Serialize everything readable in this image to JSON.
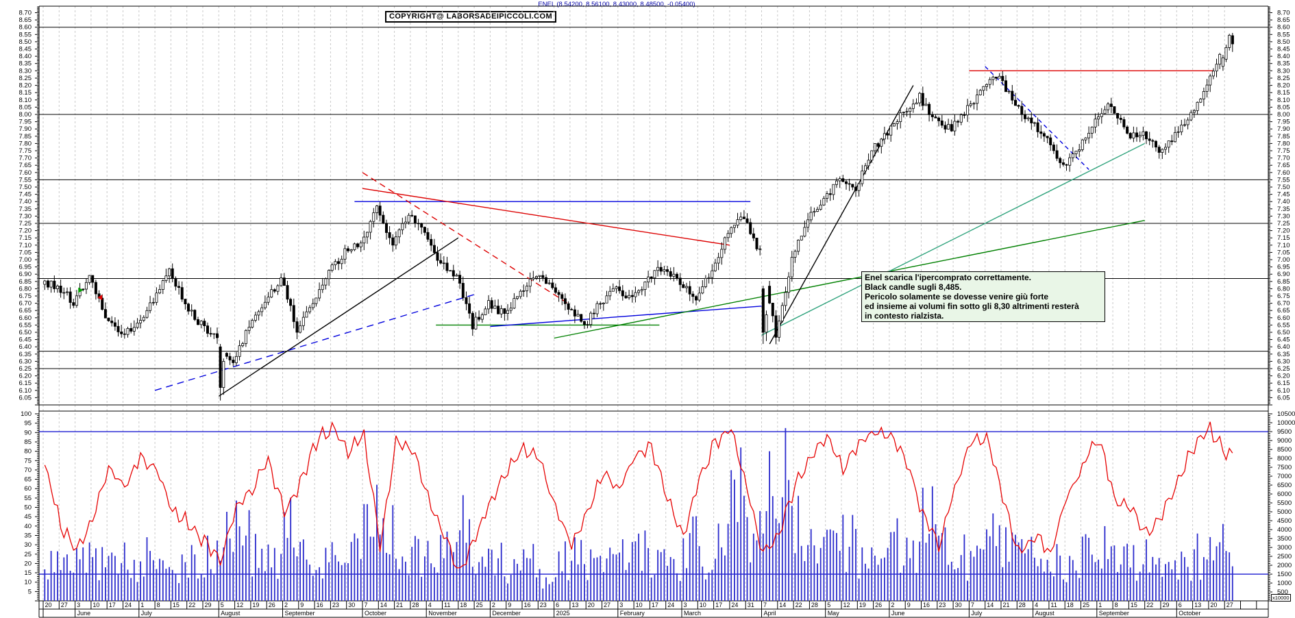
{
  "window": {
    "title": "ENEL (8.54200, 8.56100, 8.43000, 8.48500, -0.05400)",
    "copyright": "COPYRIGHT@ LABORSADEIPICCOLI.COM",
    "unit_label": "x10000"
  },
  "annotation": {
    "bg_color": "#e9f6e7",
    "lines": [
      "Enel scarica l'ipercomprato correttamente.",
      "Black candle sugli 8,485.",
      "Pericolo solamente se dovesse venire giù forte",
      "ed insieme ai volumi fin sotto gli 8,30 altrimenti resterà",
      "in contesto rialzista."
    ]
  },
  "axes": {
    "price": {
      "min": 6.0,
      "max": 8.745,
      "label_start": 6.05,
      "label_end": 8.7,
      "label_step": 0.05,
      "fine_step": 0.01
    },
    "oscillator_left": {
      "min": 0,
      "max": 100,
      "label_start": 5,
      "label_end": 100,
      "label_step": 5
    },
    "volume_right": {
      "min": 0,
      "max": 10500,
      "label_start": 500,
      "label_end": 10500,
      "label_step": 500,
      "unit": "x10000"
    }
  },
  "x_axis": {
    "week_day_labels": [
      "20",
      "27",
      "3",
      "10",
      "17",
      "24",
      "1",
      "8",
      "15",
      "22",
      "29",
      "5",
      "12",
      "19",
      "26",
      "2",
      "9",
      "16",
      "23",
      "30",
      "7",
      "14",
      "21",
      "28",
      "4",
      "11",
      "18",
      "25",
      "2",
      "9",
      "16",
      "23",
      "6",
      "13",
      "20",
      "27",
      "3",
      "10",
      "17",
      "24",
      "3",
      "10",
      "17",
      "24",
      "31",
      "7",
      "14",
      "22",
      "28",
      "5",
      "12",
      "19",
      "26",
      "2",
      "9",
      "16",
      "23",
      "30",
      "7",
      "14",
      "21",
      "28",
      "4",
      "11",
      "18",
      "25",
      "1",
      "8",
      "15",
      "22",
      "29",
      "6",
      "13",
      "20",
      "27"
    ],
    "months": [
      {
        "label": "",
        "weeks": 2
      },
      {
        "label": "June",
        "weeks": 4
      },
      {
        "label": "July",
        "weeks": 5
      },
      {
        "label": "August",
        "weeks": 4
      },
      {
        "label": "September",
        "weeks": 5
      },
      {
        "label": "October",
        "weeks": 4
      },
      {
        "label": "November",
        "weeks": 4
      },
      {
        "label": "December",
        "weeks": 4
      },
      {
        "label": "2025",
        "weeks": 4
      },
      {
        "label": "February",
        "weeks": 4
      },
      {
        "label": "March",
        "weeks": 5
      },
      {
        "label": "April",
        "weeks": 4
      },
      {
        "label": "May",
        "weeks": 4
      },
      {
        "label": "June",
        "weeks": 5
      },
      {
        "label": "July",
        "weeks": 4
      },
      {
        "label": "August",
        "weeks": 4
      },
      {
        "label": "September",
        "weeks": 5
      },
      {
        "label": "October",
        "weeks": 4
      }
    ]
  },
  "chart_data": {
    "type": "candlestick",
    "instrument": "ENEL",
    "title": "ENEL (8.54200, 8.56100, 8.43000, 8.48500, -0.05400)",
    "last_ohlc": {
      "open": 8.542,
      "high": 8.561,
      "low": 8.43,
      "close": 8.485,
      "change": -0.054
    },
    "price_ylim": [
      6.0,
      8.745
    ],
    "grid": "weekly-vertical-dashed",
    "weekly_close": [
      6.82,
      6.71,
      6.88,
      6.6,
      6.48,
      6.55,
      6.72,
      6.92,
      6.7,
      6.55,
      6.45,
      6.28,
      6.55,
      6.7,
      6.88,
      6.52,
      6.68,
      6.92,
      7.05,
      7.12,
      7.35,
      7.12,
      7.3,
      7.18,
      6.98,
      6.88,
      6.55,
      6.7,
      6.62,
      6.78,
      6.88,
      6.82,
      6.68,
      6.55,
      6.7,
      6.8,
      6.72,
      6.88,
      6.95,
      6.85,
      6.72,
      6.95,
      7.18,
      7.3,
      7.05,
      6.48,
      7.0,
      7.28,
      7.42,
      7.55,
      7.5,
      7.75,
      7.88,
      8.02,
      8.12,
      7.95,
      7.9,
      8.05,
      8.18,
      8.27,
      8.05,
      7.95,
      7.82,
      7.65,
      7.78,
      7.95,
      8.07,
      7.85,
      7.88,
      7.75,
      7.85,
      8.0,
      8.22,
      8.45,
      8.49
    ],
    "low_spikes": [
      {
        "week": 12,
        "low": 6.03
      },
      {
        "week": 46,
        "low": 6.42
      }
    ],
    "support_resistance_levels": [
      8.6,
      8.0,
      7.55,
      7.25,
      6.87,
      6.37,
      6.25
    ],
    "trendlines": [
      {
        "name": "resistance-8.30",
        "color": "#dd0000",
        "dash": "none",
        "from": [
          59.0,
          8.3
        ],
        "to": [
          74.3,
          8.3
        ]
      },
      {
        "name": "resistance-7.40",
        "color": "#0000dd",
        "dash": "none",
        "from": [
          20.5,
          7.4
        ],
        "to": [
          45.3,
          7.4
        ]
      },
      {
        "name": "support-6.55",
        "color": "#008000",
        "dash": "none",
        "from": [
          25.6,
          6.55
        ],
        "to": [
          39.6,
          6.55
        ]
      },
      {
        "name": "uptrend-black-2024",
        "color": "#000000",
        "dash": "none",
        "from": [
          12.0,
          6.06
        ],
        "to": [
          27.0,
          7.15
        ]
      },
      {
        "name": "uptrend-blue-dashed",
        "color": "#0000dd",
        "dash": "10 7",
        "from": [
          8.0,
          6.1
        ],
        "to": [
          28.0,
          6.76
        ]
      },
      {
        "name": "downtrend-red-solid",
        "color": "#dd0000",
        "dash": "none",
        "from": [
          21.0,
          7.49
        ],
        "to": [
          44.0,
          7.1
        ]
      },
      {
        "name": "downtrend-red-dashed",
        "color": "#dd0000",
        "dash": "9 6",
        "from": [
          21.0,
          7.6
        ],
        "to": [
          34.0,
          6.69
        ]
      },
      {
        "name": "uptrend-blue-flat",
        "color": "#0000dd",
        "dash": "none",
        "from": [
          29.0,
          6.54
        ],
        "to": [
          46.0,
          6.68
        ]
      },
      {
        "name": "uptrend-green-long",
        "color": "#008000",
        "dash": "none",
        "from": [
          33.0,
          6.46
        ],
        "to": [
          70.0,
          7.27
        ]
      },
      {
        "name": "uptrend-green-steep",
        "color": "#2fa37c",
        "dash": "none",
        "from": [
          46.0,
          6.48
        ],
        "to": [
          70.0,
          7.8
        ]
      },
      {
        "name": "uptrend-black-steep",
        "color": "#000000",
        "dash": "none",
        "from": [
          46.5,
          6.42
        ],
        "to": [
          55.5,
          8.2
        ]
      },
      {
        "name": "downtrend-blue-dashed-2025",
        "color": "#0000dd",
        "dash": "6 5",
        "from": [
          60.0,
          8.33
        ],
        "to": [
          66.5,
          7.62
        ]
      }
    ],
    "markers": [
      {
        "name": "green-arrow-right",
        "color": "#00a000",
        "week": 3.2,
        "price": 6.79,
        "dir": "right"
      },
      {
        "name": "red-arrow-left",
        "color": "#dd0000",
        "week": 4.7,
        "price": 6.74,
        "dir": "left"
      }
    ],
    "oscillator": {
      "name": "fast-oscillator",
      "color": "#e60000",
      "weekly_values": [
        74,
        40,
        28,
        45,
        72,
        60,
        77,
        70,
        48,
        42,
        32,
        23,
        50,
        60,
        76,
        48,
        62,
        85,
        93,
        80,
        88,
        30,
        85,
        82,
        55,
        35,
        15,
        35,
        55,
        70,
        82,
        76,
        50,
        30,
        48,
        68,
        60,
        78,
        82,
        55,
        35,
        65,
        85,
        92,
        60,
        25,
        35,
        62,
        77,
        88,
        70,
        85,
        90,
        88,
        75,
        45,
        30,
        60,
        85,
        87,
        55,
        25,
        35,
        25,
        55,
        72,
        88,
        55,
        50,
        35,
        45,
        65,
        82,
        92,
        78
      ],
      "hlines_volume_scale": [
        9500,
        1500
      ],
      "hline_color": "#0000cc"
    },
    "volume": {
      "color": "#2a2acc",
      "weekly_values": [
        2300,
        1800,
        2600,
        2100,
        1900,
        2200,
        2500,
        2000,
        1800,
        2400,
        2800,
        5000,
        4300,
        2600,
        2200,
        3900,
        2500,
        2300,
        2700,
        3200,
        4500,
        3600,
        2800,
        2500,
        2600,
        2900,
        4000,
        2400,
        2200,
        2000,
        2500,
        1400,
        2300,
        2600,
        2200,
        2000,
        2400,
        2800,
        2300,
        2100,
        3500,
        2600,
        3000,
        6400,
        4300,
        8400,
        9700,
        4600,
        3200,
        2800,
        3300,
        2600,
        2400,
        3100,
        2700,
        4300,
        2900,
        2500,
        4000,
        3400,
        2800,
        2600,
        3200,
        2400,
        2200,
        2700,
        3000,
        2300,
        2100,
        2500,
        2200,
        2000,
        2600,
        3800,
        2900
      ]
    },
    "colors": {
      "grid": "#c9c9c9",
      "candle_up_fill": "#ffffff",
      "candle_down_fill": "#000000",
      "candle_stroke": "#000000",
      "sr_line": "#000000",
      "title_text": "#0000a6"
    }
  }
}
